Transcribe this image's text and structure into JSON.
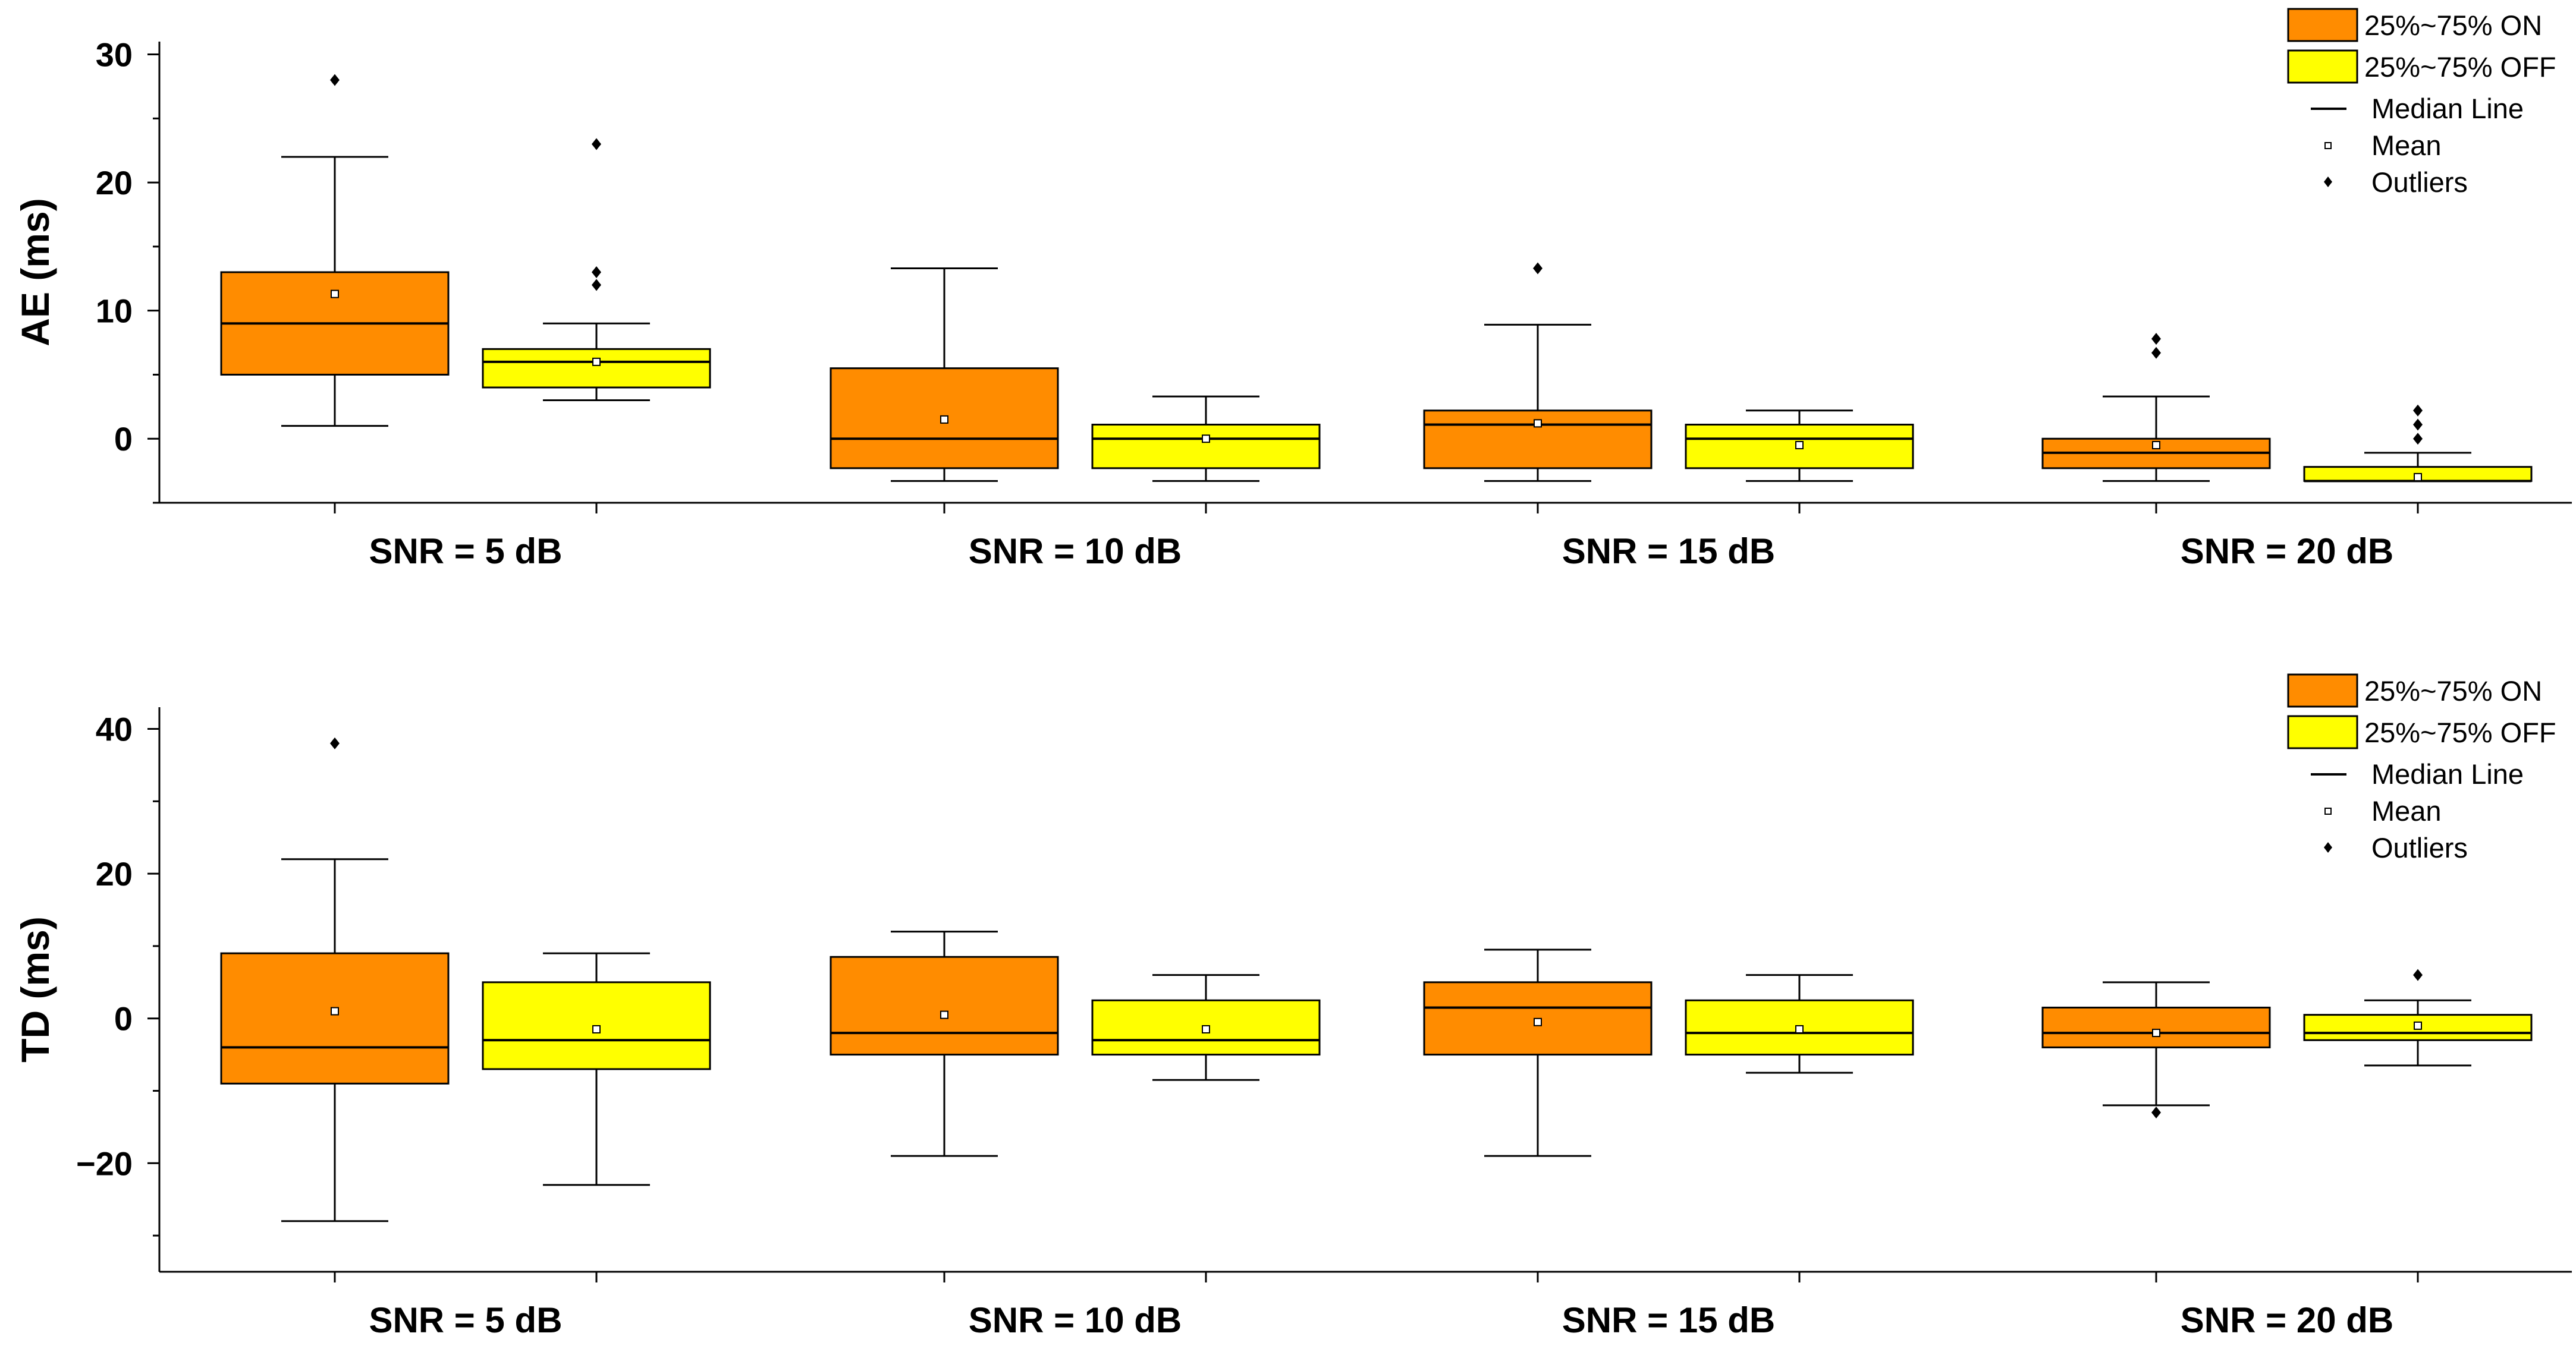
{
  "colors": {
    "on": "#ff8c00",
    "off": "#ffff00"
  },
  "chart_data": [
    {
      "type": "box",
      "ylabel": "AE (ms)",
      "yticks": [
        0,
        10,
        20,
        30
      ],
      "ylim": [
        -5,
        31
      ],
      "categories": [
        "SNR = 5 dB",
        "SNR = 10 dB",
        "SNR = 15 dB",
        "SNR = 20 dB"
      ],
      "legend": {
        "on": "25%~75% ON",
        "off": "25%~75% OFF",
        "median": "Median Line",
        "mean": "Mean",
        "outliers": "Outliers"
      },
      "series": [
        {
          "name": "ON",
          "boxes": [
            {
              "q1": 5,
              "median": 9,
              "q3": 13,
              "whisker_low": 1,
              "whisker_high": 22,
              "mean": 11.3,
              "outliers": [
                28
              ]
            },
            {
              "q1": -2.3,
              "median": 0,
              "q3": 5.5,
              "whisker_low": -3.3,
              "whisker_high": 13.3,
              "mean": 1.5,
              "outliers": []
            },
            {
              "q1": -2.3,
              "median": 1.1,
              "q3": 2.2,
              "whisker_low": -3.3,
              "whisker_high": 8.9,
              "mean": 1.2,
              "outliers": [
                13.3
              ]
            },
            {
              "q1": -2.3,
              "median": -1.1,
              "q3": 0,
              "whisker_low": -3.3,
              "whisker_high": 3.3,
              "mean": -0.5,
              "outliers": [
                6.7,
                7.8
              ]
            }
          ]
        },
        {
          "name": "OFF",
          "boxes": [
            {
              "q1": 4,
              "median": 6,
              "q3": 7,
              "whisker_low": 3,
              "whisker_high": 9,
              "mean": 6,
              "outliers": [
                12,
                13,
                23
              ]
            },
            {
              "q1": -2.3,
              "median": 0,
              "q3": 1.1,
              "whisker_low": -3.3,
              "whisker_high": 3.3,
              "mean": 0,
              "outliers": []
            },
            {
              "q1": -2.3,
              "median": 0,
              "q3": 1.1,
              "whisker_low": -3.3,
              "whisker_high": 2.2,
              "mean": -0.5,
              "outliers": []
            },
            {
              "q1": -3.3,
              "median": -3.3,
              "q3": -2.2,
              "whisker_low": -3.3,
              "whisker_high": -1.1,
              "mean": -3,
              "outliers": [
                0,
                1.1,
                2.2
              ]
            }
          ]
        }
      ]
    },
    {
      "type": "box",
      "ylabel": "TD (ms)",
      "yticks": [
        -20,
        0,
        20,
        40
      ],
      "ylim": [
        -35,
        43
      ],
      "categories": [
        "SNR = 5 dB",
        "SNR = 10 dB",
        "SNR = 15 dB",
        "SNR = 20 dB"
      ],
      "legend": {
        "on": "25%~75% ON",
        "off": "25%~75% OFF",
        "median": "Median Line",
        "mean": "Mean",
        "outliers": "Outliers"
      },
      "series": [
        {
          "name": "ON",
          "boxes": [
            {
              "q1": -9,
              "median": -4,
              "q3": 9,
              "whisker_low": -28,
              "whisker_high": 22,
              "mean": 1,
              "outliers": [
                38
              ]
            },
            {
              "q1": -5,
              "median": -2,
              "q3": 8.5,
              "whisker_low": -19,
              "whisker_high": 12,
              "mean": 0.5,
              "outliers": []
            },
            {
              "q1": -5,
              "median": 1.5,
              "q3": 5,
              "whisker_low": -19,
              "whisker_high": 9.5,
              "mean": -0.5,
              "outliers": []
            },
            {
              "q1": -4,
              "median": -2,
              "q3": 1.5,
              "whisker_low": -12,
              "whisker_high": 5,
              "mean": -2,
              "outliers": [
                -13
              ]
            }
          ]
        },
        {
          "name": "OFF",
          "boxes": [
            {
              "q1": -7,
              "median": -3,
              "q3": 5,
              "whisker_low": -23,
              "whisker_high": 9,
              "mean": -1.5,
              "outliers": []
            },
            {
              "q1": -5,
              "median": -3,
              "q3": 2.5,
              "whisker_low": -8.5,
              "whisker_high": 6,
              "mean": -1.5,
              "outliers": []
            },
            {
              "q1": -5,
              "median": -2,
              "q3": 2.5,
              "whisker_low": -7.5,
              "whisker_high": 6,
              "mean": -1.5,
              "outliers": []
            },
            {
              "q1": -3,
              "median": -2,
              "q3": 0.5,
              "whisker_low": -6.5,
              "whisker_high": 2.5,
              "mean": -1,
              "outliers": [
                6
              ]
            }
          ]
        }
      ]
    }
  ]
}
